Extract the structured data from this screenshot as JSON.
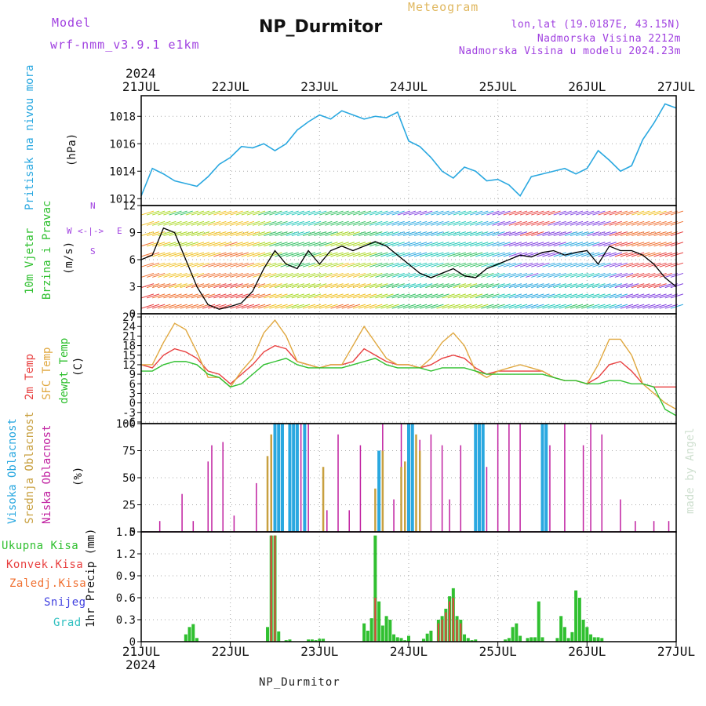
{
  "header": {
    "model_label": "Model",
    "model_name": "wrf-nmm_v3.9.1 e1km",
    "title": "NP_Durmitor",
    "meteogram": "Meteogram",
    "lonlat": "lon,lat (19.0187E, 43.15N)",
    "altitude": "Nadmorska Visina 2212m",
    "altitude_model": "Nadmorska Visina u modelu 2024.23m",
    "year": "2024"
  },
  "footer": {
    "station": "NP_Durmitor",
    "credit": "made by Angel"
  },
  "colors": {
    "pressure": "#2aa8e0",
    "temp2m": "#e84040",
    "sfc": "#e0a840",
    "dew": "#30c030",
    "high": "#2aa8e0",
    "mid": "#c8a040",
    "low": "#c020a0",
    "rain_total": "#30c030",
    "rain_conv": "#e84040",
    "frozen": "#f07030",
    "snow": "#4040e0",
    "grad": "#30c0c0"
  },
  "labels": {
    "p1_a": "Pritisak na nivou mora",
    "p1_unit": "(hPa)",
    "p2_a": "10m Vjetar",
    "p2_b": "Brzina i Pravac",
    "p2_unit": "(m/s)",
    "p3_a": "2m Temp",
    "p3_b": "SFC Temp",
    "p3_c": "dewpt Temp",
    "p3_unit": "(C)",
    "p4_a": "Visoka Oblacnost",
    "p4_b": "Srednja Oblacnost",
    "p4_c": "Niska Oblacnost",
    "p4_unit": "(%)",
    "p5_unit": "1hr Precip (mm)",
    "leg_total": "Ukupna Kisa",
    "leg_conv": "Konvek.Kisa",
    "leg_frozen": "Zaledj.Kisa",
    "leg_snow": "Snijeg",
    "leg_grad": "Grad",
    "compass_n": "N",
    "compass_s": "S",
    "compass_w": "W",
    "compass_e": "E"
  },
  "chart_data": [
    {
      "panel": "pressure",
      "type": "line",
      "x_labels": [
        "21JUL",
        "22JUL",
        "23JUL",
        "24JUL",
        "25JUL",
        "26JUL",
        "27JUL"
      ],
      "x_unit": "hours since 21JUL 00",
      "ylabel": "(hPa)",
      "ylim": [
        1011.5,
        1019.5
      ],
      "yticks": [
        1012,
        1014,
        1016,
        1018
      ],
      "x": [
        0,
        3,
        6,
        9,
        12,
        15,
        18,
        21,
        24,
        27,
        30,
        33,
        36,
        39,
        42,
        45,
        48,
        51,
        54,
        57,
        60,
        63,
        66,
        69,
        72,
        75,
        78,
        81,
        84,
        87,
        90,
        93,
        96,
        99,
        102,
        105,
        108,
        111,
        114,
        117,
        120,
        123,
        126,
        129,
        132,
        135,
        138,
        141,
        144
      ],
      "values": [
        1012.2,
        1014.2,
        1013.8,
        1013.3,
        1013.1,
        1012.9,
        1013.6,
        1014.5,
        1015.0,
        1015.8,
        1015.7,
        1016.0,
        1015.5,
        1016.0,
        1017.0,
        1017.6,
        1018.1,
        1017.8,
        1018.4,
        1018.1,
        1017.8,
        1018.0,
        1017.9,
        1018.3,
        1016.2,
        1015.8,
        1015.0,
        1014.0,
        1013.5,
        1014.3,
        1014.0,
        1013.3,
        1013.4,
        1013.0,
        1012.2,
        1013.6,
        1013.8,
        1014.0,
        1014.2,
        1013.8,
        1014.2,
        1015.5,
        1014.8,
        1014.0,
        1014.4,
        1016.3,
        1017.5,
        1018.9,
        1018.6
      ]
    },
    {
      "panel": "wind",
      "type": "line",
      "ylabel": "(m/s)",
      "ylim": [
        0,
        12
      ],
      "yticks": [
        0,
        3,
        6,
        9,
        12
      ],
      "x": [
        0,
        3,
        6,
        9,
        12,
        15,
        18,
        21,
        24,
        27,
        30,
        33,
        36,
        39,
        42,
        45,
        48,
        51,
        54,
        57,
        60,
        63,
        66,
        69,
        72,
        75,
        78,
        81,
        84,
        87,
        90,
        93,
        96,
        99,
        102,
        105,
        108,
        111,
        114,
        117,
        120,
        123,
        126,
        129,
        132,
        135,
        138,
        141,
        144
      ],
      "values": [
        6.0,
        6.5,
        9.5,
        9.0,
        6.0,
        3.0,
        1.0,
        0.5,
        0.8,
        1.2,
        2.5,
        5.0,
        7.0,
        5.5,
        5.0,
        7.0,
        5.5,
        7.0,
        7.5,
        7.0,
        7.5,
        8.0,
        7.5,
        6.5,
        5.5,
        4.5,
        4.0,
        4.5,
        5.0,
        4.2,
        4.0,
        5.0,
        5.5,
        6.0,
        6.5,
        6.3,
        6.8,
        7.0,
        6.5,
        6.8,
        7.0,
        5.5,
        7.5,
        7.0,
        7.0,
        6.5,
        5.5,
        4.0,
        3.0
      ]
    },
    {
      "panel": "temperature",
      "type": "line",
      "ylabel": "(C)",
      "ylim": [
        -6.5,
        28
      ],
      "yticks": [
        -6,
        -3,
        0,
        3,
        6,
        9,
        12,
        15,
        18,
        21,
        24,
        27
      ],
      "x": [
        0,
        3,
        6,
        9,
        12,
        15,
        18,
        21,
        24,
        27,
        30,
        33,
        36,
        39,
        42,
        45,
        48,
        51,
        54,
        57,
        60,
        63,
        66,
        69,
        72,
        75,
        78,
        81,
        84,
        87,
        90,
        93,
        96,
        99,
        102,
        105,
        108,
        111,
        114,
        117,
        120,
        123,
        126,
        129,
        132,
        135,
        138,
        141,
        144
      ],
      "series": [
        {
          "name": "2m Temp",
          "values": [
            12,
            11,
            15,
            17,
            16,
            14,
            10,
            9,
            6,
            9,
            12,
            16,
            18,
            17,
            13,
            12,
            11,
            12,
            12,
            13,
            17,
            15,
            13,
            12,
            12,
            11,
            12,
            14,
            15,
            14,
            11,
            9,
            10,
            10,
            10,
            10,
            10,
            8,
            7,
            7,
            6,
            8,
            12,
            13,
            10,
            6,
            5,
            5,
            5
          ]
        },
        {
          "name": "SFC Temp",
          "values": [
            12,
            12,
            19,
            25,
            23,
            16,
            8,
            8,
            5,
            10,
            14,
            22,
            26,
            21,
            13,
            12,
            11,
            12,
            12,
            18,
            24,
            19,
            14,
            12,
            12,
            11,
            14,
            19,
            22,
            18,
            10,
            8,
            10,
            11,
            12,
            11,
            10,
            8,
            7,
            7,
            6,
            12,
            20,
            20,
            15,
            6,
            3,
            0,
            -2
          ]
        },
        {
          "name": "dewpt Temp",
          "values": [
            10,
            10,
            12,
            13,
            13,
            12,
            9,
            8,
            5,
            6,
            9,
            12,
            13,
            14,
            12,
            11,
            11,
            11,
            11,
            12,
            13,
            14,
            12,
            11,
            11,
            11,
            10,
            11,
            11,
            11,
            10,
            9,
            9,
            9,
            9,
            9,
            9,
            8,
            7,
            7,
            6,
            6,
            7,
            7,
            6,
            6,
            5,
            -2,
            -4
          ]
        }
      ]
    },
    {
      "panel": "cloud",
      "type": "bar",
      "ylabel": "(%)",
      "ylim": [
        0,
        100
      ],
      "yticks": [
        0,
        25,
        50,
        75,
        100
      ],
      "series": [
        {
          "name": "Niska Oblacnost",
          "x": [
            5,
            11,
            14,
            18,
            19,
            22,
            25,
            31,
            34,
            38,
            43,
            44,
            45,
            50,
            53,
            56,
            59,
            65,
            68,
            70,
            72,
            75,
            78,
            81,
            83,
            86,
            90,
            93,
            96,
            99,
            102,
            108,
            110,
            114,
            119,
            121,
            124,
            129,
            133,
            138,
            142
          ],
          "values": [
            10,
            35,
            10,
            65,
            80,
            83,
            15,
            45,
            10,
            100,
            100,
            100,
            100,
            20,
            90,
            20,
            80,
            100,
            30,
            100,
            90,
            85,
            90,
            80,
            30,
            80,
            100,
            60,
            100,
            100,
            100,
            100,
            80,
            100,
            80,
            100,
            90,
            30,
            10,
            10,
            10
          ]
        },
        {
          "name": "Srednja Oblacnost",
          "x": [
            34,
            35,
            36,
            49,
            63,
            64,
            65,
            70,
            71,
            72,
            73,
            74,
            75
          ],
          "values": [
            70,
            90,
            100,
            60,
            40,
            70,
            75,
            60,
            65,
            80,
            85,
            90,
            75
          ]
        },
        {
          "name": "Visoka Oblacnost",
          "x": [
            36,
            37,
            38,
            40,
            41,
            42,
            44,
            64,
            72,
            73,
            90,
            91,
            92,
            108,
            109
          ],
          "values": [
            100,
            100,
            100,
            100,
            100,
            100,
            100,
            75,
            100,
            100,
            100,
            100,
            100,
            100,
            100
          ]
        }
      ]
    },
    {
      "panel": "precip",
      "type": "bar",
      "ylabel": "1hr Precip (mm)",
      "ylim": [
        0,
        1.5
      ],
      "yticks": [
        0,
        0.3,
        0.6,
        0.9,
        1.2,
        1.5
      ],
      "series": [
        {
          "name": "Ukupna Kisa",
          "x": [
            12,
            13,
            14,
            15,
            34,
            35,
            36,
            37,
            39,
            40,
            45,
            46,
            47,
            48,
            49,
            60,
            61,
            62,
            63,
            64,
            65,
            66,
            67,
            68,
            69,
            70,
            71,
            72,
            76,
            77,
            78,
            80,
            81,
            82,
            83,
            84,
            85,
            86,
            87,
            88,
            89,
            90,
            98,
            99,
            100,
            101,
            102,
            104,
            105,
            106,
            107,
            108,
            112,
            113,
            114,
            115,
            116,
            117,
            118,
            119,
            120,
            121,
            122,
            123,
            124
          ],
          "values": [
            0.1,
            0.2,
            0.24,
            0.05,
            0.2,
            1.45,
            1.45,
            0.14,
            0.02,
            0.03,
            0.03,
            0.03,
            0.02,
            0.04,
            0.04,
            0.25,
            0.15,
            0.32,
            1.45,
            0.55,
            0.22,
            0.35,
            0.3,
            0.1,
            0.06,
            0.05,
            0.02,
            0.08,
            0.04,
            0.11,
            0.15,
            0.3,
            0.35,
            0.45,
            0.62,
            0.73,
            0.35,
            0.3,
            0.1,
            0.05,
            0.02,
            0.03,
            0.03,
            0.05,
            0.2,
            0.25,
            0.08,
            0.05,
            0.06,
            0.06,
            0.55,
            0.06,
            0.05,
            0.35,
            0.2,
            0.05,
            0.13,
            0.7,
            0.6,
            0.3,
            0.2,
            0.1,
            0.06,
            0.06,
            0.05
          ]
        },
        {
          "name": "Konvek.Kisa",
          "x": [
            35,
            36,
            63,
            80,
            81,
            82,
            83,
            84,
            85,
            86
          ],
          "values": [
            1.45,
            1.45,
            0.6,
            0.25,
            0.3,
            0.4,
            0.55,
            0.6,
            0.3,
            0.25
          ]
        }
      ]
    }
  ]
}
